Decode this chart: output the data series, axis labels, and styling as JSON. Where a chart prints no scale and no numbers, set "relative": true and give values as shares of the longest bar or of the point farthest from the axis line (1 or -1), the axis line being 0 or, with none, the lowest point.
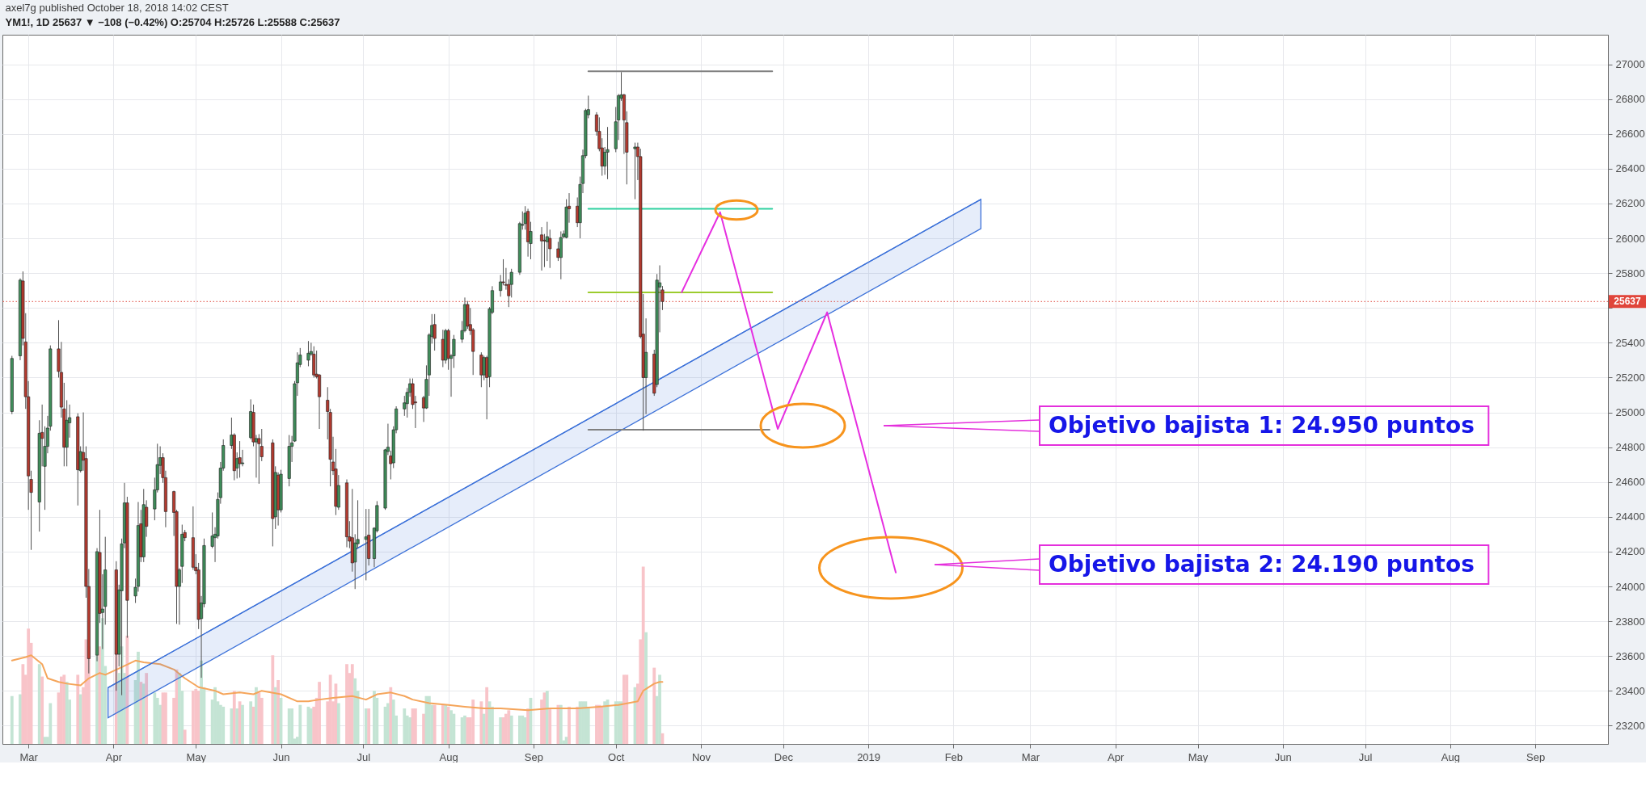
{
  "chart_data": [
    {
      "type": "candlestick",
      "title": "axel7g published October 18, 2018 14:02 CEST",
      "subtitle": "YM1!, 1D 25637 ▼ −108 (−0.42%) O:25704 H:25726 L:25588 C:25637",
      "x": [
        "2018-02-23",
        "2018-02-26",
        "2018-02-27",
        "2018-02-28",
        "2018-03-01",
        "2018-03-02",
        "2018-03-05",
        "2018-03-06",
        "2018-03-07",
        "2018-03-08",
        "2018-03-09",
        "2018-03-12",
        "2018-03-13",
        "2018-03-14",
        "2018-03-15",
        "2018-03-16",
        "2018-03-19",
        "2018-03-20",
        "2018-03-21",
        "2018-03-22",
        "2018-03-23",
        "2018-03-26",
        "2018-03-27",
        "2018-03-28",
        "2018-03-29",
        "2018-04-02",
        "2018-04-03",
        "2018-04-04",
        "2018-04-05",
        "2018-04-06",
        "2018-04-09",
        "2018-04-10",
        "2018-04-11",
        "2018-04-12",
        "2018-04-13",
        "2018-04-16",
        "2018-04-17",
        "2018-04-18",
        "2018-04-19",
        "2018-04-20",
        "2018-04-23",
        "2018-04-24",
        "2018-04-25",
        "2018-04-26",
        "2018-04-27",
        "2018-04-30",
        "2018-05-01",
        "2018-05-02",
        "2018-05-03",
        "2018-05-04",
        "2018-05-07",
        "2018-05-08",
        "2018-05-09",
        "2018-05-10",
        "2018-05-11",
        "2018-05-14",
        "2018-05-15",
        "2018-05-16",
        "2018-05-17",
        "2018-05-18",
        "2018-05-21",
        "2018-05-22",
        "2018-05-23",
        "2018-05-24",
        "2018-05-25",
        "2018-05-29",
        "2018-05-30",
        "2018-05-31",
        "2018-06-01",
        "2018-06-04",
        "2018-06-05",
        "2018-06-06",
        "2018-06-07",
        "2018-06-08",
        "2018-06-11",
        "2018-06-12",
        "2018-06-13",
        "2018-06-14",
        "2018-06-15",
        "2018-06-18",
        "2018-06-19",
        "2018-06-20",
        "2018-06-21",
        "2018-06-22",
        "2018-06-25",
        "2018-06-26",
        "2018-06-27",
        "2018-06-28",
        "2018-06-29",
        "2018-07-02",
        "2018-07-03",
        "2018-07-05",
        "2018-07-06",
        "2018-07-09",
        "2018-07-10",
        "2018-07-11",
        "2018-07-12",
        "2018-07-13",
        "2018-07-16",
        "2018-07-17",
        "2018-07-18",
        "2018-07-19",
        "2018-07-20",
        "2018-07-23",
        "2018-07-24",
        "2018-07-25",
        "2018-07-26",
        "2018-07-27",
        "2018-07-30",
        "2018-07-31",
        "2018-08-01",
        "2018-08-02",
        "2018-08-03",
        "2018-08-06",
        "2018-08-07",
        "2018-08-08",
        "2018-08-09",
        "2018-08-10",
        "2018-08-13",
        "2018-08-14",
        "2018-08-15",
        "2018-08-16",
        "2018-08-17",
        "2018-08-20",
        "2018-08-21",
        "2018-08-22",
        "2018-08-23",
        "2018-08-24",
        "2018-08-27",
        "2018-08-28",
        "2018-08-29",
        "2018-08-30",
        "2018-08-31",
        "2018-09-04",
        "2018-09-05",
        "2018-09-06",
        "2018-09-07",
        "2018-09-10",
        "2018-09-11",
        "2018-09-12",
        "2018-09-13",
        "2018-09-14",
        "2018-09-17",
        "2018-09-18",
        "2018-09-19",
        "2018-09-20",
        "2018-09-21",
        "2018-09-24",
        "2018-09-25",
        "2018-09-26",
        "2018-09-27",
        "2018-09-28",
        "2018-10-01",
        "2018-10-02",
        "2018-10-03",
        "2018-10-04",
        "2018-10-05",
        "2018-10-08",
        "2018-10-09",
        "2018-10-10",
        "2018-10-11",
        "2018-10-12",
        "2018-10-15",
        "2018-10-16",
        "2018-10-17",
        "2018-10-18"
      ],
      "ohlc": [
        [
          25005,
          25325,
          24990,
          25310
        ],
        [
          25325,
          25770,
          25300,
          25760
        ],
        [
          25755,
          25810,
          25385,
          25425
        ],
        [
          25405,
          25570,
          25020,
          25090
        ],
        [
          25090,
          25180,
          24440,
          24635
        ],
        [
          24615,
          24665,
          24210,
          24540
        ],
        [
          24485,
          24955,
          24315,
          24880
        ],
        [
          24885,
          25045,
          24690,
          24850
        ],
        [
          24690,
          24920,
          24440,
          24805
        ],
        [
          24805,
          24980,
          24765,
          24910
        ],
        [
          24920,
          25385,
          24895,
          25365
        ],
        [
          25365,
          25530,
          25200,
          25235
        ],
        [
          25230,
          25405,
          24970,
          25030
        ],
        [
          25020,
          25170,
          24690,
          24800
        ],
        [
          24800,
          25070,
          24690,
          24955
        ],
        [
          24940,
          25045,
          24855,
          24970
        ],
        [
          24975,
          24995,
          24465,
          24670
        ],
        [
          24665,
          24805,
          24655,
          24775
        ],
        [
          24770,
          25000,
          24665,
          24725
        ],
        [
          24735,
          24805,
          23935,
          24000
        ],
        [
          24000,
          24100,
          23500,
          23585
        ],
        [
          23605,
          24220,
          23570,
          24200
        ],
        [
          24195,
          24440,
          23790,
          23845
        ],
        [
          23850,
          24070,
          23640,
          23870
        ],
        [
          23885,
          24285,
          23780,
          24095
        ],
        [
          24095,
          24145,
          23400,
          23610
        ],
        [
          23610,
          24010,
          23540,
          23980
        ],
        [
          23975,
          24275,
          23375,
          24245
        ],
        [
          24250,
          24595,
          24220,
          24480
        ],
        [
          24480,
          24515,
          23705,
          23920
        ],
        [
          23945,
          24045,
          23905,
          23995
        ],
        [
          24000,
          24485,
          23970,
          24350
        ],
        [
          24360,
          24440,
          24140,
          24170
        ],
        [
          24170,
          24560,
          24140,
          24470
        ],
        [
          24455,
          24495,
          24285,
          24345
        ],
        [
          24445,
          24625,
          24380,
          24555
        ],
        [
          24555,
          24820,
          24540,
          24700
        ],
        [
          24695,
          24805,
          24645,
          24740
        ],
        [
          24740,
          24765,
          24595,
          24625
        ],
        [
          24625,
          24665,
          24340,
          24430
        ],
        [
          24545,
          24550,
          24290,
          24425
        ],
        [
          24430,
          24440,
          23785,
          24000
        ],
        [
          24000,
          24105,
          23780,
          24095
        ],
        [
          24115,
          24355,
          24020,
          24300
        ],
        [
          24310,
          24325,
          24260,
          24280
        ],
        [
          24280,
          24460,
          24095,
          24110
        ],
        [
          24110,
          24185,
          24070,
          24090
        ],
        [
          24095,
          24135,
          23755,
          23810
        ],
        [
          23815,
          23945,
          23475,
          23905
        ],
        [
          23900,
          24275,
          23880,
          24235
        ],
        [
          24230,
          24425,
          24220,
          24290
        ],
        [
          24280,
          24340,
          24140,
          24300
        ],
        [
          24290,
          24540,
          24275,
          24500
        ],
        [
          24510,
          24715,
          24475,
          24680
        ],
        [
          24680,
          24845,
          24665,
          24810
        ],
        [
          24810,
          24970,
          24790,
          24870
        ],
        [
          24870,
          24880,
          24610,
          24665
        ],
        [
          24680,
          24770,
          24620,
          24735
        ],
        [
          24740,
          24835,
          24625,
          24705
        ],
        [
          24705,
          24785,
          24690,
          24710
        ],
        [
          24855,
          25075,
          24845,
          25005
        ],
        [
          25000,
          25045,
          24805,
          24830
        ],
        [
          24830,
          24870,
          24625,
          24850
        ],
        [
          24850,
          24875,
          24590,
          24820
        ],
        [
          24805,
          24905,
          24720,
          24745
        ],
        [
          24825,
          24845,
          24230,
          24390
        ],
        [
          24400,
          24690,
          24330,
          24655
        ],
        [
          24640,
          24655,
          24350,
          24440
        ],
        [
          24440,
          24670,
          24425,
          24645
        ],
        [
          24620,
          24870,
          24575,
          24805
        ],
        [
          24805,
          24865,
          24715,
          24825
        ],
        [
          24835,
          25180,
          24830,
          25165
        ],
        [
          25170,
          25345,
          25095,
          25285
        ],
        [
          25275,
          25370,
          25260,
          25330
        ],
        [
          25300,
          25410,
          25265,
          25340
        ],
        [
          25335,
          25400,
          25325,
          25350
        ],
        [
          25335,
          25380,
          25200,
          25215
        ],
        [
          25220,
          25355,
          25195,
          25205
        ],
        [
          25215,
          25220,
          24905,
          25090
        ],
        [
          25070,
          25145,
          24845,
          25005
        ],
        [
          25000,
          25020,
          24575,
          24730
        ],
        [
          24715,
          24860,
          24640,
          24665
        ],
        [
          24675,
          24790,
          24410,
          24460
        ],
        [
          24455,
          24640,
          24440,
          24580
        ],
        [
          24595,
          24615,
          24225,
          24285
        ],
        [
          24285,
          24375,
          24220,
          24260
        ],
        [
          24280,
          24560,
          24085,
          24135
        ],
        [
          24140,
          24300,
          23985,
          24250
        ],
        [
          24245,
          24495,
          24220,
          24270
        ],
        [
          24270,
          24445,
          24035,
          24285
        ],
        [
          24295,
          24445,
          24120,
          24160
        ],
        [
          24160,
          24340,
          24110,
          24335
        ],
        [
          24320,
          24490,
          24310,
          24465
        ],
        [
          24450,
          24790,
          24440,
          24785
        ],
        [
          24775,
          24935,
          24755,
          24800
        ],
        [
          24750,
          24780,
          24615,
          24705
        ],
        [
          24710,
          24920,
          24680,
          24900
        ],
        [
          24900,
          25035,
          24880,
          25020
        ],
        [
          25020,
          25095,
          24980,
          25055
        ],
        [
          25050,
          25140,
          24970,
          25115
        ],
        [
          25115,
          25195,
          25090,
          25165
        ],
        [
          25165,
          25195,
          25020,
          25045
        ],
        [
          25060,
          25095,
          24910,
          25055
        ],
        [
          25085,
          25095,
          24945,
          25025
        ],
        [
          25025,
          25270,
          25020,
          25190
        ],
        [
          25215,
          25455,
          25095,
          25445
        ],
        [
          25435,
          25565,
          25395,
          25500
        ],
        [
          25505,
          25565,
          25355,
          25425
        ],
        [
          25420,
          25475,
          25260,
          25300
        ],
        [
          25300,
          25480,
          25280,
          25470
        ],
        [
          25470,
          25480,
          25245,
          25310
        ],
        [
          25310,
          25335,
          25090,
          25325
        ],
        [
          25325,
          25445,
          25255,
          25420
        ],
        [
          25420,
          25525,
          25400,
          25470
        ],
        [
          25470,
          25660,
          25460,
          25620
        ],
        [
          25620,
          25640,
          25480,
          25495
        ],
        [
          25505,
          25600,
          25445,
          25470
        ],
        [
          25475,
          25485,
          25215,
          25350
        ],
        [
          25330,
          25345,
          25145,
          25215
        ],
        [
          25215,
          25325,
          25185,
          25315
        ],
        [
          25315,
          25325,
          24960,
          25200
        ],
        [
          25205,
          25605,
          25145,
          25595
        ],
        [
          25575,
          25725,
          25565,
          25700
        ],
        [
          25700,
          25790,
          25665,
          25750
        ],
        [
          25750,
          25880,
          25730,
          25745
        ],
        [
          25735,
          25830,
          25705,
          25730
        ],
        [
          25735,
          25765,
          25605,
          25670
        ],
        [
          25735,
          25825,
          25660,
          25805
        ],
        [
          25805,
          26095,
          25790,
          26085
        ],
        [
          26075,
          26155,
          26050,
          26080
        ],
        [
          26085,
          26185,
          26050,
          26145
        ],
        [
          26155,
          26170,
          25895,
          25980
        ],
        [
          25970,
          26095,
          25880,
          26040
        ],
        [
          26020,
          26065,
          25815,
          25985
        ],
        [
          25990,
          26025,
          25835,
          25985
        ],
        [
          25980,
          26095,
          25870,
          26010
        ],
        [
          26000,
          26050,
          25830,
          25940
        ],
        [
          25940,
          25980,
          25870,
          25890
        ],
        [
          25890,
          26040,
          25765,
          26005
        ],
        [
          26010,
          26045,
          26000,
          26025
        ],
        [
          26005,
          26225,
          26000,
          26180
        ],
        [
          26185,
          26260,
          26090,
          26170
        ],
        [
          26185,
          26235,
          26065,
          26090
        ],
        [
          26090,
          26355,
          26000,
          26310
        ],
        [
          26315,
          26510,
          26260,
          26475
        ],
        [
          26475,
          26745,
          26460,
          26735
        ],
        [
          26710,
          26820,
          26690,
          26740
        ],
        [
          26710,
          26725,
          26590,
          26615
        ],
        [
          26615,
          26695,
          26500,
          26515
        ],
        [
          26520,
          26575,
          26360,
          26415
        ],
        [
          26415,
          26525,
          26365,
          26495
        ],
        [
          26495,
          26640,
          26340,
          26510
        ],
        [
          26515,
          26755,
          26495,
          26670
        ],
        [
          26680,
          26830,
          26565,
          26820
        ],
        [
          26805,
          26955,
          26790,
          26825
        ],
        [
          26825,
          26830,
          26485,
          26680
        ],
        [
          26665,
          26730,
          26310,
          26495
        ],
        [
          26515,
          26550,
          26225,
          26525
        ],
        [
          26525,
          26550,
          26335,
          26470
        ],
        [
          26470,
          26515,
          25425,
          25435
        ],
        [
          25450,
          25680,
          24895,
          25200
        ],
        [
          25200,
          25540,
          24990,
          25345
        ],
        [
          25335,
          25360,
          25095,
          25110
        ],
        [
          25160,
          25795,
          25145,
          25760
        ],
        [
          25720,
          25845,
          25460,
          25745
        ],
        [
          25704,
          25726,
          25588,
          25637
        ]
      ],
      "colors": [
        "#3f8d5a",
        "#3f8d5a",
        "#b33a2f",
        "#b33a2f",
        "#b33a2f",
        "#b33a2f",
        "#3f8d5a",
        "#b33a2f",
        "#3f8d5a",
        "#3f8d5a",
        "#3f8d5a",
        "#b33a2f",
        "#b33a2f",
        "#b33a2f",
        "#3f8d5a",
        "#3f8d5a",
        "#b33a2f",
        "#3f8d5a",
        "#b33a2f",
        "#b33a2f",
        "#b33a2f",
        "#3f8d5a",
        "#b33a2f",
        "#3f8d5a",
        "#3f8d5a",
        "#b33a2f",
        "#3f8d5a",
        "#3f8d5a",
        "#3f8d5a",
        "#b33a2f",
        "#3f8d5a",
        "#3f8d5a",
        "#b33a2f",
        "#3f8d5a",
        "#b33a2f",
        "#3f8d5a",
        "#3f8d5a",
        "#3f8d5a",
        "#b33a2f",
        "#b33a2f",
        "#b33a2f",
        "#b33a2f",
        "#3f8d5a",
        "#3f8d5a",
        "#b33a2f",
        "#b33a2f",
        "#b33a2f",
        "#b33a2f",
        "#3f8d5a",
        "#3f8d5a",
        "#3f8d5a",
        "#3f8d5a",
        "#3f8d5a",
        "#3f8d5a",
        "#3f8d5a",
        "#3f8d5a",
        "#b33a2f",
        "#3f8d5a",
        "#b33a2f",
        "#3f8d5a",
        "#3f8d5a",
        "#b33a2f",
        "#3f8d5a",
        "#b33a2f",
        "#b33a2f",
        "#b33a2f",
        "#3f8d5a",
        "#b33a2f",
        "#3f8d5a",
        "#3f8d5a",
        "#3f8d5a",
        "#3f8d5a",
        "#3f8d5a",
        "#3f8d5a",
        "#3f8d5a",
        "#3f8d5a",
        "#b33a2f",
        "#b33a2f",
        "#b33a2f",
        "#b33a2f",
        "#b33a2f",
        "#b33a2f",
        "#b33a2f",
        "#3f8d5a",
        "#b33a2f",
        "#b33a2f",
        "#b33a2f",
        "#3f8d5a",
        "#3f8d5a",
        "#3f8d5a",
        "#b33a2f",
        "#3f8d5a",
        "#3f8d5a",
        "#3f8d5a",
        "#3f8d5a",
        "#b33a2f",
        "#3f8d5a",
        "#3f8d5a",
        "#3f8d5a",
        "#3f8d5a",
        "#3f8d5a",
        "#b33a2f",
        "#b33a2f",
        "#b33a2f",
        "#3f8d5a",
        "#3f8d5a",
        "#3f8d5a",
        "#b33a2f",
        "#b33a2f",
        "#3f8d5a",
        "#b33a2f",
        "#3f8d5a",
        "#3f8d5a",
        "#3f8d5a",
        "#3f8d5a",
        "#b33a2f",
        "#b33a2f",
        "#b33a2f",
        "#b33a2f",
        "#3f8d5a",
        "#b33a2f",
        "#3f8d5a",
        "#3f8d5a",
        "#3f8d5a",
        "#b33a2f",
        "#b33a2f",
        "#b33a2f",
        "#3f8d5a",
        "#3f8d5a",
        "#3f8d5a",
        "#3f8d5a",
        "#b33a2f",
        "#3f8d5a",
        "#b33a2f",
        "#b33a2f",
        "#3f8d5a",
        "#b33a2f",
        "#b33a2f",
        "#3f8d5a",
        "#3f8d5a",
        "#3f8d5a",
        "#b33a2f",
        "#b33a2f",
        "#3f8d5a",
        "#3f8d5a",
        "#3f8d5a",
        "#3f8d5a",
        "#b33a2f",
        "#b33a2f",
        "#b33a2f",
        "#3f8d5a",
        "#3f8d5a",
        "#3f8d5a",
        "#3f8d5a",
        "#3f8d5a",
        "#b33a2f",
        "#b33a2f",
        "#3f8d5a",
        "#b33a2f",
        "#b33a2f",
        "#b33a2f",
        "#3f8d5a",
        "#b33a2f",
        "#3f8d5a",
        "#3f8d5a",
        "#b33a2f"
      ],
      "series": [
        {
          "type": "line",
          "color": "#3d72d9",
          "x": [
            "2018-03-30",
            "2019-02-11"
          ],
          "values": [
            23418,
            26224
          ],
          "lower": [
            23245,
            26056
          ],
          "upper": [
            23418,
            26224
          ]
        },
        {
          "type": "line",
          "color": "#808080",
          "x": [
            "2018-09-21",
            "2018-11-27"
          ],
          "values": [
            26960,
            26960
          ]
        },
        {
          "type": "line",
          "color": "#2fd0a0",
          "x": [
            "2018-09-21",
            "2018-11-27"
          ],
          "values": [
            26170,
            26170
          ]
        },
        {
          "type": "line",
          "color": "#9ccc2e",
          "x": [
            "2018-09-21",
            "2018-11-27"
          ],
          "values": [
            25690,
            25690
          ]
        },
        {
          "type": "line",
          "color": "#808080",
          "x": [
            "2018-09-21",
            "2018-11-26"
          ],
          "values": [
            24900,
            24900
          ]
        },
        {
          "type": "line",
          "color": "#e62ee0",
          "x": [
            "2018-10-25",
            "2018-11-08",
            "2018-11-29",
            "2018-12-17",
            "2019-01-11"
          ],
          "values": [
            25690,
            26150,
            24905,
            25575,
            24080
          ]
        }
      ],
      "xlim": [
        "2018-02-21",
        "2019-09-26"
      ],
      "xticks": [
        {
          "value": "2018-03-01",
          "label": "Mar"
        },
        {
          "value": "2018-04-01",
          "label": "Apr"
        },
        {
          "value": "2018-05-01",
          "label": "May"
        },
        {
          "value": "2018-06-01",
          "label": "Jun"
        },
        {
          "value": "2018-07-01",
          "label": "Jul"
        },
        {
          "value": "2018-08-01",
          "label": "Aug"
        },
        {
          "value": "2018-09-01",
          "label": "Sep"
        },
        {
          "value": "2018-10-01",
          "label": "Oct"
        },
        {
          "value": "2018-11-01",
          "label": "Nov"
        },
        {
          "value": "2018-12-01",
          "label": "Dec"
        },
        {
          "value": "2019-01-01",
          "label": "2019"
        },
        {
          "value": "2019-02-01",
          "label": "Feb"
        },
        {
          "value": "2019-03-01",
          "label": "Mar"
        },
        {
          "value": "2019-04-01",
          "label": "Apr"
        },
        {
          "value": "2019-05-01",
          "label": "May"
        },
        {
          "value": "2019-06-01",
          "label": "Jun"
        },
        {
          "value": "2019-07-01",
          "label": "Jul"
        },
        {
          "value": "2019-08-01",
          "label": "Aug"
        },
        {
          "value": "2019-09-01",
          "label": "Sep"
        }
      ],
      "ylim": [
        23095,
        27170
      ],
      "yticks": [
        23200,
        23400,
        23600,
        23800,
        24000,
        24200,
        24400,
        24600,
        24800,
        25000,
        25200,
        25400,
        {
          "value": 25600,
          "label": null
        },
        25800,
        26000,
        26200,
        26400,
        26600,
        26800,
        27000
      ],
      "grid": true,
      "ref_lines": [
        {
          "axis": "y",
          "value": 25637,
          "label": "25637",
          "color": "#e0453a",
          "line_style": "dotted"
        }
      ],
      "annotations": [
        "Objetivo bajista 1: 24.950 puntos",
        "Objetivo bajista 2: 24.190 puntos"
      ]
    },
    {
      "type": "bar",
      "relative": true,
      "tick_labels": "x",
      "xlim": [
        "2018-02-21",
        "2019-09-26"
      ],
      "x": [
        "2018-02-23",
        "2018-02-26",
        "2018-02-27",
        "2018-02-28",
        "2018-03-01",
        "2018-03-02",
        "2018-03-05",
        "2018-03-06",
        "2018-03-07",
        "2018-03-08",
        "2018-03-09",
        "2018-03-12",
        "2018-03-13",
        "2018-03-14",
        "2018-03-15",
        "2018-03-16",
        "2018-03-19",
        "2018-03-20",
        "2018-03-21",
        "2018-03-22",
        "2018-03-23",
        "2018-03-26",
        "2018-03-27",
        "2018-03-28",
        "2018-03-29",
        "2018-04-02",
        "2018-04-03",
        "2018-04-04",
        "2018-04-05",
        "2018-04-06",
        "2018-04-09",
        "2018-04-10",
        "2018-04-11",
        "2018-04-12",
        "2018-04-13",
        "2018-04-16",
        "2018-04-17",
        "2018-04-18",
        "2018-04-19",
        "2018-04-20",
        "2018-04-23",
        "2018-04-24",
        "2018-04-25",
        "2018-04-26",
        "2018-04-27",
        "2018-04-30",
        "2018-05-01",
        "2018-05-02",
        "2018-05-03",
        "2018-05-04",
        "2018-05-07",
        "2018-05-08",
        "2018-05-09",
        "2018-05-10",
        "2018-05-11",
        "2018-05-14",
        "2018-05-15",
        "2018-05-16",
        "2018-05-17",
        "2018-05-18",
        "2018-05-21",
        "2018-05-22",
        "2018-05-23",
        "2018-05-24",
        "2018-05-25",
        "2018-05-29",
        "2018-05-30",
        "2018-05-31",
        "2018-06-01",
        "2018-06-04",
        "2018-06-05",
        "2018-06-06",
        "2018-06-07",
        "2018-06-08",
        "2018-06-11",
        "2018-06-12",
        "2018-06-13",
        "2018-06-14",
        "2018-06-15",
        "2018-06-18",
        "2018-06-19",
        "2018-06-20",
        "2018-06-21",
        "2018-06-22",
        "2018-06-25",
        "2018-06-26",
        "2018-06-27",
        "2018-06-28",
        "2018-06-29",
        "2018-07-02",
        "2018-07-03",
        "2018-07-05",
        "2018-07-06",
        "2018-07-09",
        "2018-07-10",
        "2018-07-11",
        "2018-07-12",
        "2018-07-13",
        "2018-07-16",
        "2018-07-17",
        "2018-07-18",
        "2018-07-19",
        "2018-07-20",
        "2018-07-23",
        "2018-07-24",
        "2018-07-25",
        "2018-07-26",
        "2018-07-27",
        "2018-07-30",
        "2018-07-31",
        "2018-08-01",
        "2018-08-02",
        "2018-08-03",
        "2018-08-06",
        "2018-08-07",
        "2018-08-08",
        "2018-08-09",
        "2018-08-10",
        "2018-08-13",
        "2018-08-14",
        "2018-08-15",
        "2018-08-16",
        "2018-08-17",
        "2018-08-20",
        "2018-08-21",
        "2018-08-22",
        "2018-08-23",
        "2018-08-24",
        "2018-08-27",
        "2018-08-28",
        "2018-08-29",
        "2018-08-30",
        "2018-08-31",
        "2018-09-04",
        "2018-09-05",
        "2018-09-06",
        "2018-09-07",
        "2018-09-10",
        "2018-09-11",
        "2018-09-12",
        "2018-09-13",
        "2018-09-14",
        "2018-09-17",
        "2018-09-18",
        "2018-09-19",
        "2018-09-20",
        "2018-09-21",
        "2018-09-24",
        "2018-09-25",
        "2018-09-26",
        "2018-09-27",
        "2018-09-28",
        "2018-10-01",
        "2018-10-02",
        "2018-10-03",
        "2018-10-04",
        "2018-10-05",
        "2018-10-08",
        "2018-10-09",
        "2018-10-10",
        "2018-10-11",
        "2018-10-12",
        "2018-10-15",
        "2018-10-16",
        "2018-10-17",
        "2018-10-18"
      ],
      "series": [
        {
          "type": "bar",
          "values": [
            0.27,
            0.28,
            0.45,
            0.39,
            0.65,
            0.57,
            0.45,
            0.38,
            0.04,
            0.04,
            0.23,
            0.29,
            0.38,
            0.39,
            0.35,
            0.25,
            0.39,
            0.28,
            0.32,
            0.59,
            0.55,
            0.5,
            0.55,
            0.71,
            0.44,
            0.51,
            0.4,
            0.55,
            0.4,
            0.61,
            0.36,
            0.52,
            0.35,
            0.34,
            0.4,
            0.29,
            0.26,
            0.22,
            0.29,
            0.29,
            0.26,
            0.42,
            0.4,
            0.3,
            0.08,
            0.3,
            0.31,
            0.3,
            0.47,
            0.32,
            0.25,
            0.32,
            0.24,
            0.22,
            0.21,
            0.2,
            0.3,
            0.2,
            0.24,
            0.22,
            0.24,
            0.21,
            0.32,
            0.29,
            0.26,
            0.5,
            0.32,
            0.36,
            0.26,
            0.2,
            0.2,
            0.03,
            0.04,
            0.22,
            0.21,
            0.2,
            0.21,
            0.26,
            0.35,
            0.24,
            0.39,
            0.24,
            0.34,
            0.23,
            0.45,
            0.4,
            0.45,
            0.37,
            0.3,
            0.2,
            0.2,
            0.3,
            0.26,
            0.21,
            0.23,
            0.32,
            0.25,
            0.16,
            0.2,
            0.16,
            0.15,
            0.2,
            0.2,
            0.17,
            0.27,
            0.27,
            0.22,
            0.22,
            0.22,
            0.22,
            0.21,
            0.19,
            0.17,
            0.15,
            0.16,
            0.15,
            0.15,
            0.25,
            0.24,
            0.17,
            0.32,
            0.24,
            0.21,
            0.15,
            0.15,
            0.17,
            0.19,
            0.16,
            0.16,
            0.16,
            0.15,
            0.2,
            0.26,
            0.25,
            0.29,
            0.3,
            0.2,
            0.22,
            0.22,
            0.02,
            0.04,
            0.21,
            0.21,
            0.24,
            0.24,
            0.24,
            0.21,
            0.22,
            0.22,
            0.21,
            0.24,
            0.25,
            0.24,
            0.24,
            0.24,
            0.39,
            0.39,
            0.32,
            0.34,
            0.59,
            1,
            0.63,
            0.43,
            0.27,
            0.39,
            0.06
          ],
          "colors": [
            "#c4e4d4",
            "#c4e4d4",
            "#f8c4c9",
            "#f8c4c9",
            "#f8c4c9",
            "#f8c4c9",
            "#c4e4d4",
            "#f8c4c9",
            "#c4e4d4",
            "#c4e4d4",
            "#c4e4d4",
            "#f8c4c9",
            "#f8c4c9",
            "#f8c4c9",
            "#c4e4d4",
            "#c4e4d4",
            "#f8c4c9",
            "#c4e4d4",
            "#f8c4c9",
            "#f8c4c9",
            "#f8c4c9",
            "#c4e4d4",
            "#f8c4c9",
            "#c4e4d4",
            "#c4e4d4",
            "#f8c4c9",
            "#c4e4d4",
            "#c4e4d4",
            "#c4e4d4",
            "#f8c4c9",
            "#c4e4d4",
            "#c4e4d4",
            "#f8c4c9",
            "#c4e4d4",
            "#f8c4c9",
            "#c4e4d4",
            "#c4e4d4",
            "#c4e4d4",
            "#f8c4c9",
            "#f8c4c9",
            "#f8c4c9",
            "#f8c4c9",
            "#c4e4d4",
            "#c4e4d4",
            "#f8c4c9",
            "#f8c4c9",
            "#f8c4c9",
            "#f8c4c9",
            "#c4e4d4",
            "#c4e4d4",
            "#c4e4d4",
            "#c4e4d4",
            "#c4e4d4",
            "#c4e4d4",
            "#c4e4d4",
            "#c4e4d4",
            "#f8c4c9",
            "#c4e4d4",
            "#f8c4c9",
            "#c4e4d4",
            "#c4e4d4",
            "#f8c4c9",
            "#c4e4d4",
            "#f8c4c9",
            "#f8c4c9",
            "#f8c4c9",
            "#c4e4d4",
            "#f8c4c9",
            "#c4e4d4",
            "#c4e4d4",
            "#c4e4d4",
            "#c4e4d4",
            "#c4e4d4",
            "#c4e4d4",
            "#c4e4d4",
            "#c4e4d4",
            "#f8c4c9",
            "#f8c4c9",
            "#f8c4c9",
            "#f8c4c9",
            "#f8c4c9",
            "#f8c4c9",
            "#f8c4c9",
            "#c4e4d4",
            "#f8c4c9",
            "#f8c4c9",
            "#f8c4c9",
            "#c4e4d4",
            "#c4e4d4",
            "#c4e4d4",
            "#f8c4c9",
            "#c4e4d4",
            "#c4e4d4",
            "#c4e4d4",
            "#c4e4d4",
            "#f8c4c9",
            "#c4e4d4",
            "#c4e4d4",
            "#c4e4d4",
            "#c4e4d4",
            "#c4e4d4",
            "#f8c4c9",
            "#f8c4c9",
            "#f8c4c9",
            "#c4e4d4",
            "#c4e4d4",
            "#c4e4d4",
            "#f8c4c9",
            "#f8c4c9",
            "#c4e4d4",
            "#f8c4c9",
            "#c4e4d4",
            "#c4e4d4",
            "#c4e4d4",
            "#c4e4d4",
            "#f8c4c9",
            "#f8c4c9",
            "#f8c4c9",
            "#f8c4c9",
            "#c4e4d4",
            "#f8c4c9",
            "#c4e4d4",
            "#c4e4d4",
            "#c4e4d4",
            "#f8c4c9",
            "#f8c4c9",
            "#f8c4c9",
            "#c4e4d4",
            "#c4e4d4",
            "#c4e4d4",
            "#c4e4d4",
            "#f8c4c9",
            "#c4e4d4",
            "#f8c4c9",
            "#f8c4c9",
            "#c4e4d4",
            "#f8c4c9",
            "#f8c4c9",
            "#c4e4d4",
            "#c4e4d4",
            "#c4e4d4",
            "#f8c4c9",
            "#f8c4c9",
            "#c4e4d4",
            "#c4e4d4",
            "#c4e4d4",
            "#c4e4d4",
            "#f8c4c9",
            "#f8c4c9",
            "#f8c4c9",
            "#c4e4d4",
            "#c4e4d4",
            "#c4e4d4",
            "#c4e4d4",
            "#c4e4d4",
            "#f8c4c9",
            "#f8c4c9",
            "#c4e4d4",
            "#f8c4c9",
            "#f8c4c9",
            "#f8c4c9",
            "#c4e4d4",
            "#f8c4c9",
            "#c4e4d4",
            "#c4e4d4",
            "#f8c4c9"
          ]
        },
        {
          "type": "line",
          "color": "#f5a55b",
          "x": [
            "2018-02-23",
            "2018-02-28",
            "2018-03-02",
            "2018-03-06",
            "2018-03-08",
            "2018-03-12",
            "2018-03-15",
            "2018-03-20",
            "2018-03-23",
            "2018-03-27",
            "2018-03-29",
            "2018-04-05",
            "2018-04-09",
            "2018-04-12",
            "2018-04-18",
            "2018-04-23",
            "2018-04-27",
            "2018-05-02",
            "2018-05-08",
            "2018-05-11",
            "2018-05-17",
            "2018-05-22",
            "2018-05-25",
            "2018-06-01",
            "2018-06-07",
            "2018-06-11",
            "2018-06-15",
            "2018-06-20",
            "2018-06-27",
            "2018-07-02",
            "2018-07-06",
            "2018-07-11",
            "2018-07-16",
            "2018-07-19",
            "2018-07-25",
            "2018-08-01",
            "2018-08-07",
            "2018-08-14",
            "2018-08-20",
            "2018-08-30",
            "2018-09-07",
            "2018-09-17",
            "2018-09-25",
            "2018-10-02",
            "2018-10-09",
            "2018-10-11",
            "2018-10-15",
            "2018-10-17",
            "2018-10-18"
          ],
          "values": [
            0.47,
            0.49,
            0.5,
            0.45,
            0.37,
            0.35,
            0.34,
            0.33,
            0.37,
            0.4,
            0.39,
            0.44,
            0.47,
            0.46,
            0.45,
            0.42,
            0.37,
            0.32,
            0.3,
            0.28,
            0.29,
            0.28,
            0.3,
            0.28,
            0.24,
            0.24,
            0.25,
            0.26,
            0.27,
            0.25,
            0.28,
            0.29,
            0.27,
            0.25,
            0.23,
            0.22,
            0.21,
            0.2,
            0.2,
            0.19,
            0.2,
            0.2,
            0.21,
            0.22,
            0.24,
            0.3,
            0.34,
            0.35,
            0.35
          ]
        }
      ]
    }
  ]
}
